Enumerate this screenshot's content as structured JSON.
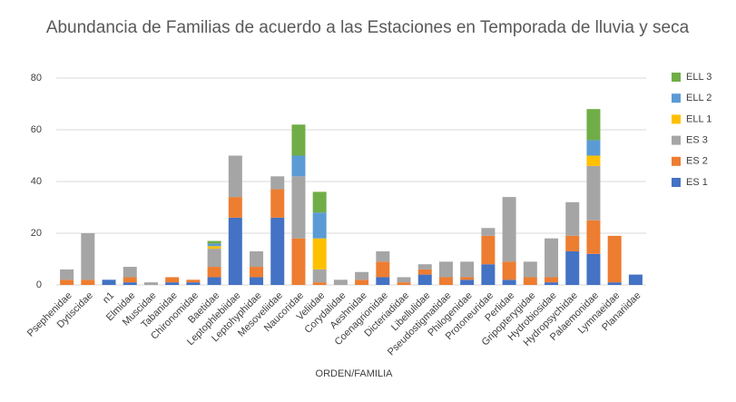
{
  "chart_data": {
    "type": "stacked_bar",
    "title": "Abundancia de Familias de acuerdo a las Estaciones en Temporada de lluvia y seca",
    "x_label": "ORDEN/FAMILIA",
    "categories": [
      "Psephenidae",
      "Dytiscidae",
      "n1",
      "Elmidae",
      "Muscidae",
      "Tabanidae",
      "Chironomidae",
      "Baetidae",
      "Leptophlebiidae",
      "Leptohyphidae",
      "Mesoveliidae",
      "Naucoridae",
      "Veliidae",
      "Corydalidae",
      "Aeshnidae",
      "Coenagrionidae",
      "Dicteriadidae",
      "Libellulidae",
      "Pseudostigmatidae",
      "Philogenidae",
      "Protoneuridae",
      "Perlidae",
      "Gripopterygidae",
      "Hydrobiosidae",
      "Hydropsychidae",
      "Palaemonidae",
      "Lymnaeidae",
      "Planariidae"
    ],
    "series": [
      {
        "name": "ES 1",
        "color": "#4472c4",
        "values": [
          0,
          0,
          2,
          1,
          0,
          1,
          1,
          3,
          26,
          3,
          26,
          0,
          0,
          0,
          0,
          3,
          0,
          4,
          0,
          2,
          8,
          2,
          0,
          1,
          13,
          12,
          1,
          4
        ]
      },
      {
        "name": "ES 2",
        "color": "#ed7d31",
        "values": [
          2,
          2,
          0,
          2,
          0,
          2,
          1,
          4,
          8,
          4,
          11,
          18,
          1,
          0,
          2,
          6,
          1,
          2,
          3,
          1,
          11,
          7,
          3,
          2,
          6,
          13,
          18,
          0
        ]
      },
      {
        "name": "ES 3",
        "color": "#a5a5a5",
        "values": [
          4,
          18,
          0,
          4,
          1,
          0,
          0,
          7,
          16,
          6,
          5,
          24,
          5,
          2,
          3,
          4,
          2,
          2,
          6,
          6,
          3,
          25,
          6,
          15,
          13,
          21,
          0,
          0
        ]
      },
      {
        "name": "ELL 1",
        "color": "#ffc000",
        "values": [
          0,
          0,
          0,
          0,
          0,
          0,
          0,
          1,
          0,
          0,
          0,
          0,
          12,
          0,
          0,
          0,
          0,
          0,
          0,
          0,
          0,
          0,
          0,
          0,
          0,
          4,
          0,
          0
        ]
      },
      {
        "name": "ELL 2",
        "color": "#5b9bd5",
        "values": [
          0,
          0,
          0,
          0,
          0,
          0,
          0,
          1,
          0,
          0,
          0,
          8,
          10,
          0,
          0,
          0,
          0,
          0,
          0,
          0,
          0,
          0,
          0,
          0,
          0,
          6,
          0,
          0
        ]
      },
      {
        "name": "ELL 3",
        "color": "#70ad47",
        "values": [
          0,
          0,
          0,
          0,
          0,
          0,
          0,
          1,
          0,
          0,
          0,
          12,
          8,
          0,
          0,
          0,
          0,
          0,
          0,
          0,
          0,
          0,
          0,
          0,
          0,
          12,
          0,
          0
        ]
      }
    ],
    "ylim": [
      0,
      80
    ],
    "yticks": [
      0,
      20,
      40,
      60,
      80
    ],
    "grid": true,
    "legend": "right"
  }
}
